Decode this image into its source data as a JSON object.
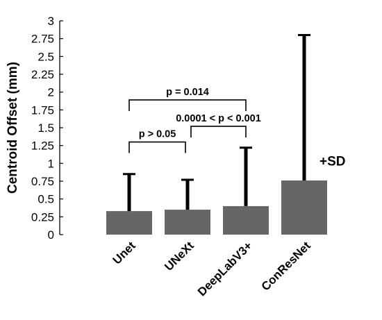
{
  "chart_data": {
    "type": "bar",
    "categories": [
      "Unet",
      "UNeXt",
      "DeepLabV3+",
      "ConResNet"
    ],
    "values": [
      0.33,
      0.35,
      0.4,
      0.76
    ],
    "error_plus_sd": [
      0.52,
      0.42,
      0.82,
      2.04
    ],
    "error_tops": [
      0.85,
      0.77,
      1.22,
      2.8
    ],
    "ylabel": "Centroid Offset (mm)",
    "xlabel": "",
    "title": "",
    "ylim": [
      0,
      3
    ],
    "yticks": [
      "0",
      "0.25",
      "0.5",
      "0.75",
      "1",
      "1.25",
      "1.5",
      "1.75",
      "2",
      "2.25",
      "2.5",
      "2.75",
      "3"
    ],
    "grid": false,
    "bar_color": "#666666",
    "error_color": "#000000",
    "error_label": "+SD",
    "annotations": [
      {
        "text": "p = 0.014",
        "from": 0,
        "to": 2,
        "level": 1.89
      },
      {
        "text": "p > 0.05",
        "from": 0,
        "to": 1,
        "level": 1.3
      },
      {
        "text": "0.0001 < p < 0.001",
        "from": 1,
        "to": 2,
        "level": 1.52
      }
    ]
  }
}
